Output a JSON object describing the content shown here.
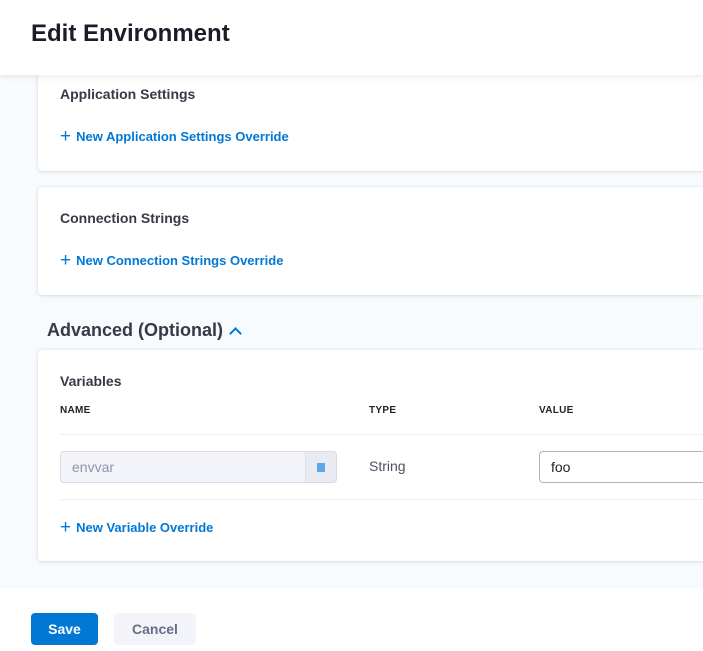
{
  "header": {
    "title": "Edit Environment"
  },
  "app_settings": {
    "title": "Application Settings",
    "add_label": "New Application Settings Override"
  },
  "conn_strings": {
    "title": "Connection Strings",
    "add_label": "New Connection Strings Override"
  },
  "advanced": {
    "title": "Advanced (Optional)",
    "expanded": true
  },
  "variables": {
    "title": "Variables",
    "columns": [
      "NAME",
      "TYPE",
      "VALUE"
    ],
    "rows": [
      {
        "name": "envvar",
        "type": "String",
        "value": "foo"
      }
    ],
    "add_label": "New Variable Override"
  },
  "footer": {
    "save_label": "Save",
    "cancel_label": "Cancel"
  },
  "colors": {
    "accent": "#0278d5",
    "background": "#f7fbfe"
  }
}
